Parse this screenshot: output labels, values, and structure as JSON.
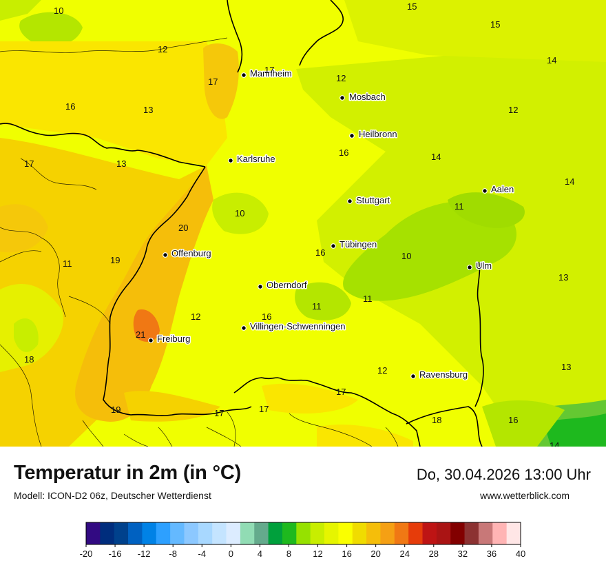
{
  "map": {
    "cities": [
      {
        "name": "Mannheim"
      },
      {
        "name": "Mosbach"
      },
      {
        "name": "Heilbronn"
      },
      {
        "name": "Karlsruhe"
      },
      {
        "name": "Aalen"
      },
      {
        "name": "Stuttgart"
      },
      {
        "name": "Tübingen"
      },
      {
        "name": "Offenburg"
      },
      {
        "name": "Ulm"
      },
      {
        "name": "Oberndorf"
      },
      {
        "name": "Villingen-Schwenningen"
      },
      {
        "name": "Freiburg"
      },
      {
        "name": "Ravensburg"
      }
    ],
    "temperatures": [
      "10",
      "15",
      "15",
      "12",
      "17",
      "14",
      "12",
      "17",
      "16",
      "13",
      "12",
      "16",
      "14",
      "17",
      "13",
      "14",
      "10",
      "20",
      "11",
      "19",
      "11",
      "16",
      "10",
      "13",
      "11",
      "11",
      "12",
      "16",
      "21",
      "18",
      "12",
      "13",
      "17",
      "19",
      "17",
      "17",
      "18",
      "16",
      "14"
    ]
  },
  "footer": {
    "title": "Temperatur in 2m (in °C)",
    "model": "Modell: ICON-D2 06z, Deutscher Wetterdienst",
    "datetime": "Do, 30.04.2026 13:00 Uhr",
    "site": "www.wetterblick.com"
  },
  "colorbar": {
    "ticks": [
      "-20",
      "-16",
      "-12",
      "-8",
      "-4",
      "0",
      "4",
      "8",
      "12",
      "16",
      "20",
      "24",
      "28",
      "32",
      "36",
      "40"
    ],
    "colors": [
      "#320a82",
      "#002d7d",
      "#00418c",
      "#0061c1",
      "#0082e6",
      "#2da0ff",
      "#64b9ff",
      "#8cc8ff",
      "#a8d8ff",
      "#c4e4ff",
      "#dcecff",
      "#91dcb4",
      "#64aa8c",
      "#00a03c",
      "#1eb91e",
      "#96e100",
      "#c8ee00",
      "#e6f500",
      "#faff00",
      "#f0dc00",
      "#f5be0a",
      "#f5a014",
      "#f07814",
      "#e63c0a",
      "#be1414",
      "#aa1414",
      "#820000",
      "#8c3232",
      "#c87878",
      "#ffb4b4",
      "#ffe6e6"
    ]
  }
}
